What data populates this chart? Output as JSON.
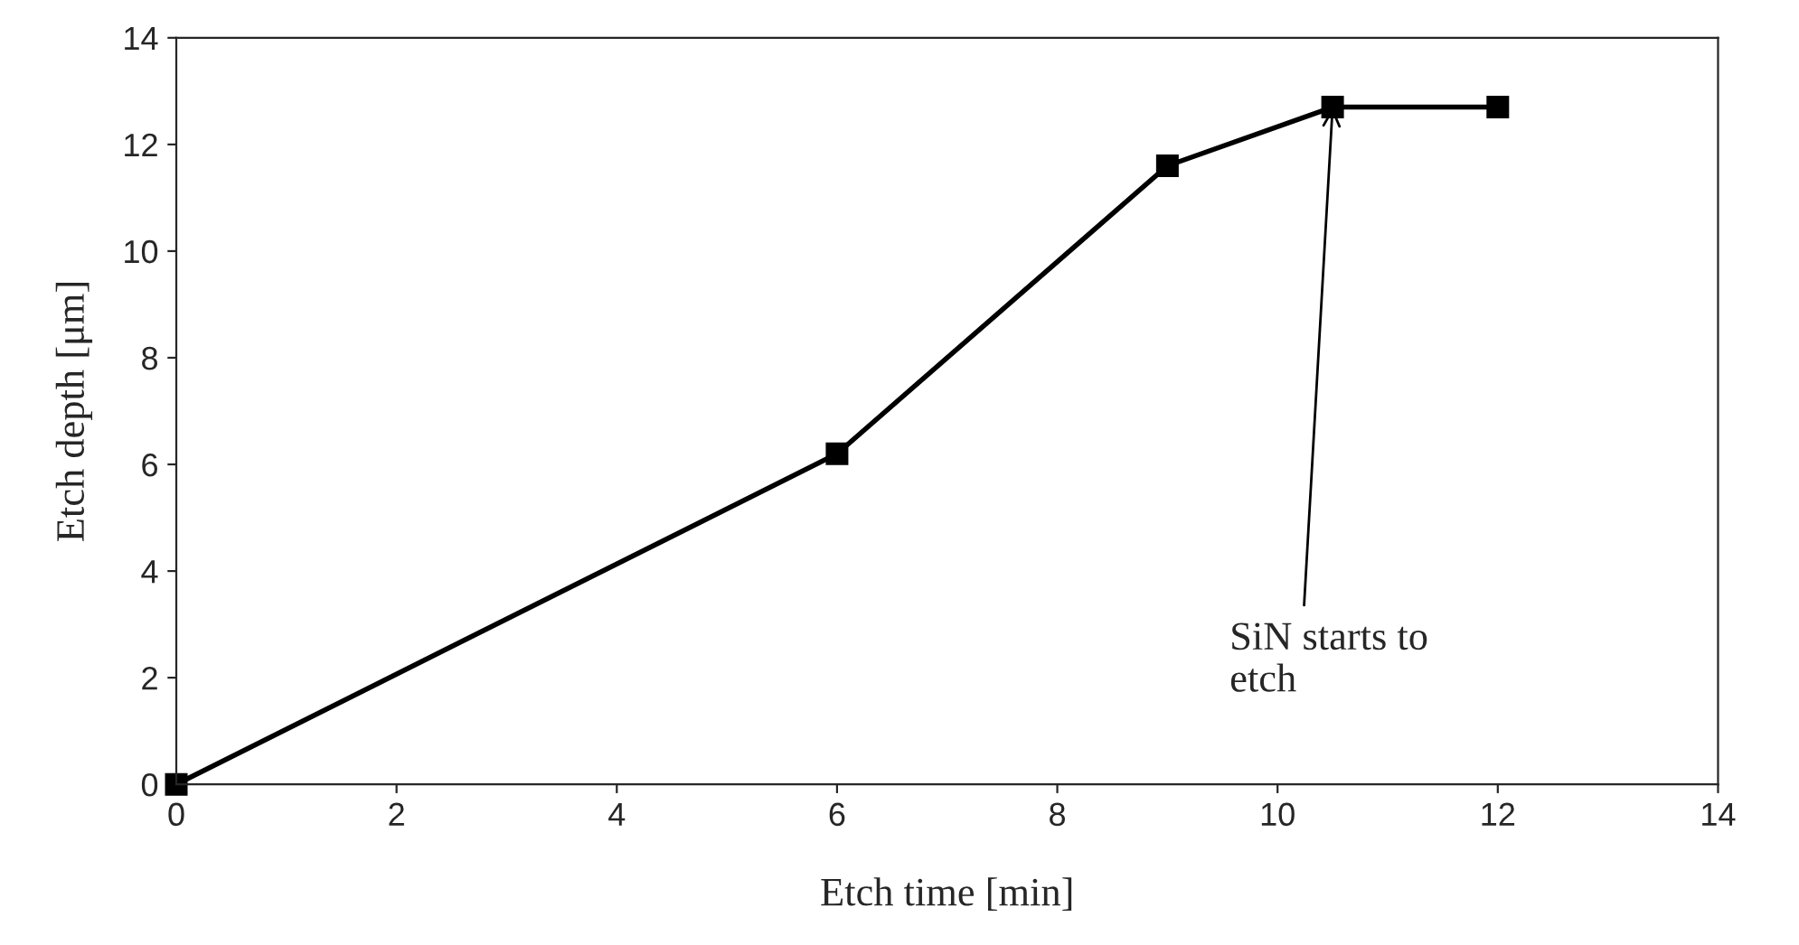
{
  "chart_data": {
    "type": "line",
    "xlabel": "Etch time [min]",
    "ylabel": "Etch depth [μm]",
    "x": [
      0,
      6,
      9,
      10.5,
      12
    ],
    "series": [
      {
        "color": "#000000",
        "values": [
          0,
          6.2,
          11.6,
          12.7,
          12.7
        ]
      }
    ],
    "xlim": [
      0,
      14
    ],
    "ylim": [
      0,
      14
    ],
    "xticks": [
      0,
      2,
      4,
      6,
      8,
      10,
      12,
      14
    ],
    "yticks": [
      0,
      2,
      4,
      6,
      8,
      10,
      12,
      14
    ],
    "marker": "square",
    "line_style": "solid",
    "grid": false,
    "legend": false,
    "annotations": [
      {
        "text": "SiN starts to\netch",
        "x": 10.5,
        "y": 12.7
      }
    ]
  }
}
